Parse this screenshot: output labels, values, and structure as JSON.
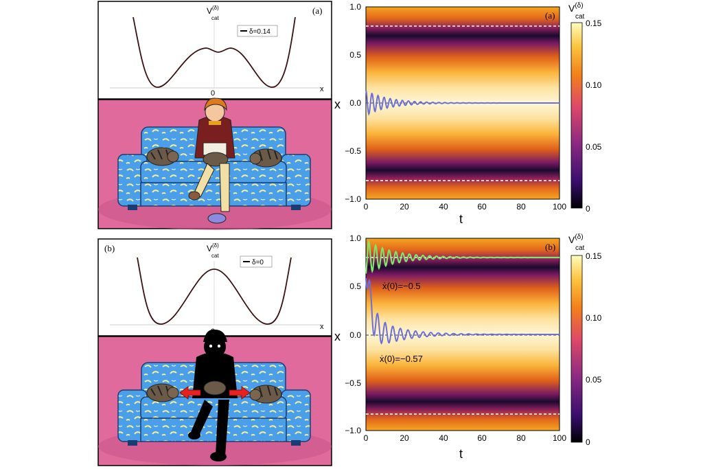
{
  "top": {
    "panel_label": "(a)",
    "potential": {
      "ylabel": "V_cat^(δ)",
      "ylabel_main": "V",
      "ylabel_sub": "cat",
      "ylabel_sup": "(δ)",
      "xlabel": "x",
      "zero_tick": "0",
      "legend": "δ=0.14"
    },
    "heatmap": {
      "panel_label": "(a)",
      "ylabel": "x",
      "xlabel": "t",
      "yticks": [
        "1.0",
        "0.5",
        "0.0",
        "−0.5",
        "−1.0"
      ],
      "xticks": [
        "0",
        "20",
        "40",
        "60",
        "80",
        "100"
      ],
      "colorbar": {
        "label_main": "V",
        "label_sub": "cat",
        "label_sup": "(δ)",
        "ticks": [
          "0.15",
          "0.10",
          "0.05",
          "0"
        ]
      }
    }
  },
  "bottom": {
    "panel_label": "(b)",
    "potential": {
      "ylabel": "V_cat^(δ)",
      "ylabel_main": "V",
      "ylabel_sub": "cat",
      "ylabel_sup": "(δ)",
      "xlabel": "x",
      "zero_tick": "0",
      "legend": "δ=0"
    },
    "heatmap": {
      "panel_label": "(b)",
      "ylabel": "x",
      "xlabel": "t",
      "yticks": [
        "1.0",
        "0.5",
        "0.0",
        "−0.5",
        "−1.0"
      ],
      "xticks": [
        "0",
        "20",
        "40",
        "60",
        "80",
        "100"
      ],
      "annotations": [
        "ẋ(0)=−0.5",
        "ẋ(0)=−0.57"
      ],
      "colorbar": {
        "label_main": "V",
        "label_sub": "cat",
        "label_sup": "(δ)",
        "ticks": [
          "0.15",
          "0.10",
          "0.05",
          "0"
        ]
      }
    }
  },
  "chart_data": [
    {
      "type": "line",
      "panel": "(a)",
      "title": "",
      "xlabel": "x",
      "ylabel": "V_cat^(δ)",
      "legend": "δ=0.14",
      "x": [
        -1.0,
        -0.8,
        -0.5,
        0,
        0.5,
        0.8,
        1.0
      ],
      "y_shape": "double well with small central bump; minima near x=±0.8"
    },
    {
      "type": "heatmap",
      "panel": "(a)",
      "xlabel": "t",
      "ylabel": "x",
      "xlim": [
        0,
        100
      ],
      "ylim": [
        -1,
        1
      ],
      "color_range": [
        0,
        0.15
      ],
      "dashed_lines_x": [
        0.8,
        -0.8
      ],
      "series": [
        {
          "initial_x": 0.1,
          "final_x": 0.0,
          "damped_oscillation": true
        }
      ]
    },
    {
      "type": "line",
      "panel": "(b)",
      "title": "",
      "xlabel": "x",
      "ylabel": "V_cat^(δ)",
      "legend": "δ=0",
      "x": [
        -1.0,
        -0.8,
        0,
        0.8,
        1.0
      ],
      "y_shape": "double well with central maximum at x=0"
    },
    {
      "type": "heatmap",
      "panel": "(b)",
      "xlabel": "t",
      "ylabel": "x",
      "xlim": [
        0,
        100
      ],
      "ylim": [
        -1,
        1
      ],
      "color_range": [
        0,
        0.15
      ],
      "dashed_lines_x": [
        0.8,
        -0.8
      ],
      "series": [
        {
          "name": "ẋ(0)=−0.5",
          "initial_x": 0.8,
          "final_x": 0.8,
          "color": "#7ee66a"
        },
        {
          "name": "ẋ(0)=−0.57",
          "initial_x": 0.8,
          "final_x": 0.0,
          "color": "#6b6fd6"
        }
      ]
    }
  ],
  "colors": {
    "frame": "#000000",
    "wall": "#e06a9c",
    "sofa": "#4a9fe8",
    "potential_curve": "#3a1010",
    "traj_green": "#7ee66a",
    "traj_blue": "#6b6fd6"
  }
}
